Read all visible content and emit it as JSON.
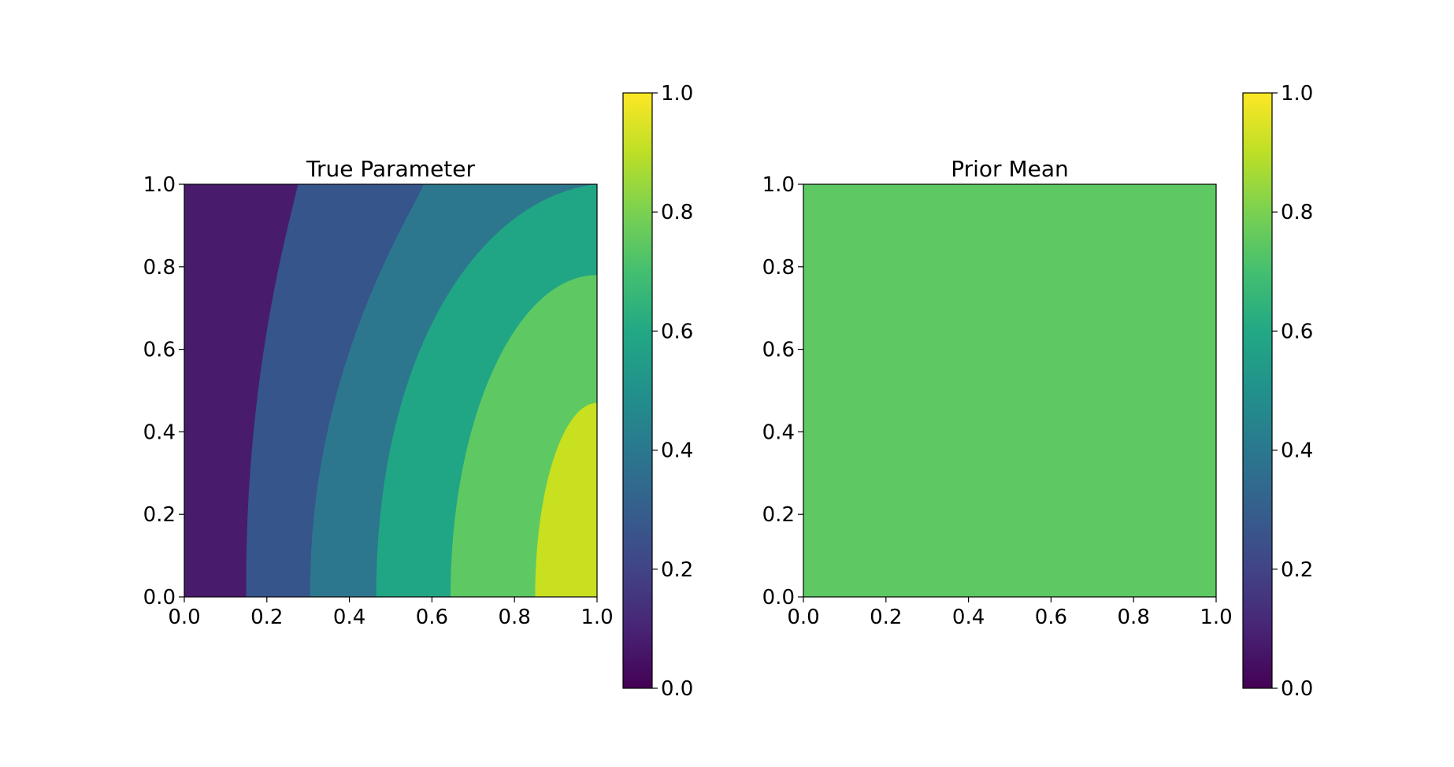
{
  "chart_data": [
    {
      "type": "contourf",
      "title": "True Parameter",
      "xlabel": "",
      "ylabel": "",
      "xlim": [
        0,
        1
      ],
      "ylim": [
        0,
        1
      ],
      "xticks": [
        "0.0",
        "0.2",
        "0.4",
        "0.6",
        "0.8",
        "1.0"
      ],
      "yticks": [
        "0.0",
        "0.2",
        "0.4",
        "0.6",
        "0.8",
        "1.0"
      ],
      "grid": false,
      "levels": [
        {
          "range": [
            0.0,
            0.2
          ],
          "color": "#481b6d",
          "boundary_y0": 0.15,
          "boundary_y1": 0.275
        },
        {
          "range": [
            0.2,
            0.4
          ],
          "color": "#35558b",
          "boundary_y0": 0.305,
          "boundary_y1": 0.58
        },
        {
          "range": [
            0.4,
            0.6
          ],
          "color": "#2d778e",
          "boundary_y0": 0.465,
          "boundary_right": 1.0
        },
        {
          "range": [
            0.6,
            0.8
          ],
          "color": "#21a685",
          "boundary_y0": 0.645,
          "boundary_right": 0.78
        },
        {
          "range": [
            0.8,
            1.0
          ],
          "color": "#5ec962",
          "boundary_y0": 0.85,
          "boundary_right": 0.47
        },
        {
          "range": [
            1.0,
            1.2
          ],
          "color": "#c8e020"
        }
      ],
      "colorbar": {
        "ticks": [
          "0.0",
          "0.2",
          "0.4",
          "0.6",
          "0.8",
          "1.0"
        ],
        "range": [
          0,
          1
        ]
      }
    },
    {
      "type": "contourf",
      "title": "Prior Mean",
      "xlabel": "",
      "ylabel": "",
      "xlim": [
        0,
        1
      ],
      "ylim": [
        0,
        1
      ],
      "xticks": [
        "0.0",
        "0.2",
        "0.4",
        "0.6",
        "0.8",
        "1.0"
      ],
      "yticks": [
        "0.0",
        "0.2",
        "0.4",
        "0.6",
        "0.8",
        "1.0"
      ],
      "grid": false,
      "constant_value": 0.8,
      "fill_color": "#5ec962",
      "colorbar": {
        "ticks": [
          "0.0",
          "0.2",
          "0.4",
          "0.6",
          "0.8",
          "1.0"
        ],
        "range": [
          0,
          1
        ]
      }
    }
  ]
}
